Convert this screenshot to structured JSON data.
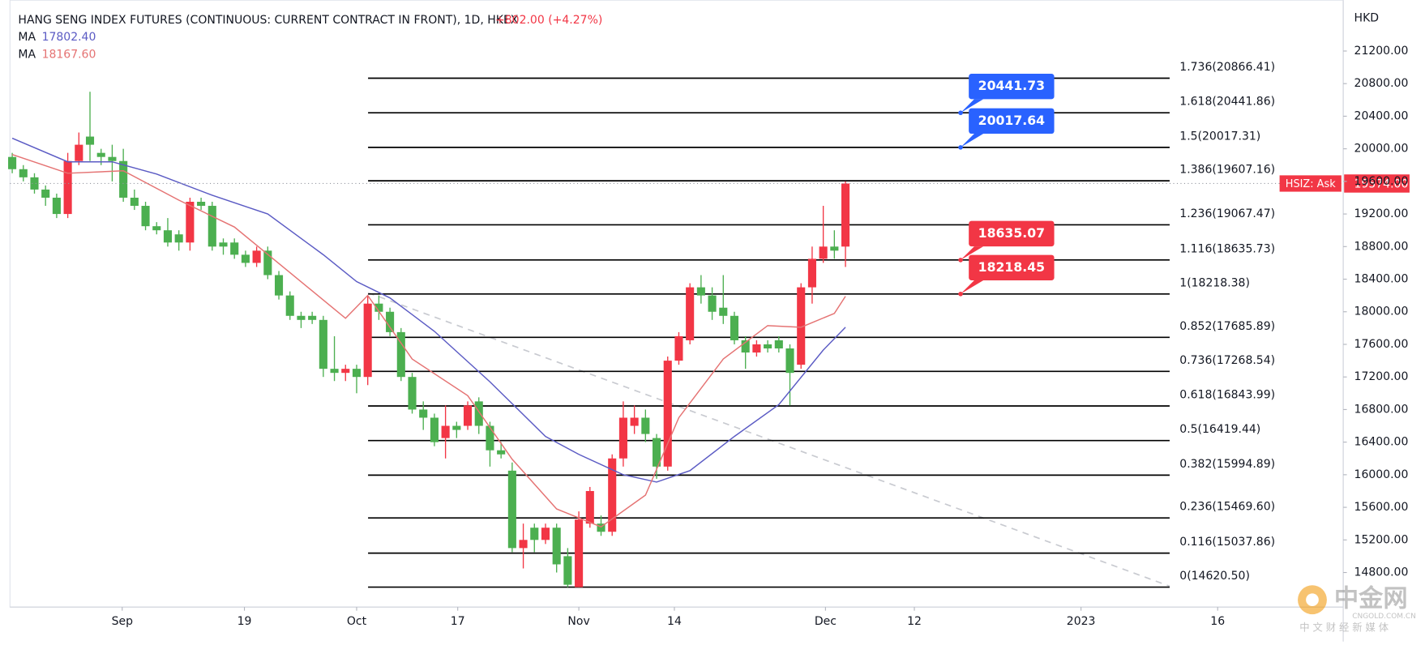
{
  "chart_data": {
    "type": "candlestick",
    "title": "HANG SENG INDEX FUTURES (CONTINUOUS: CURRENT CONTRACT IN FRONT), 1D, HKEX",
    "change": "+802.00 (+4.27%)",
    "y_axis_label": "HKD",
    "up_color": "#f23645",
    "down_color": "#4caf50",
    "xlim": [
      -0.2,
      119.8
    ],
    "ylim": [
      14376,
      21824
    ],
    "xticks": [
      {
        "value": 9.9,
        "label": "Sep"
      },
      {
        "value": 20.9,
        "label": "19"
      },
      {
        "value": 31.0,
        "label": "Oct"
      },
      {
        "value": 40.1,
        "label": "17"
      },
      {
        "value": 51.0,
        "label": "Nov"
      },
      {
        "value": 59.6,
        "label": "14"
      },
      {
        "value": 73.2,
        "label": "Dec"
      },
      {
        "value": 81.2,
        "label": "12"
      },
      {
        "value": 96.2,
        "label": "2023"
      },
      {
        "value": 108.5,
        "label": "16"
      }
    ],
    "yticks": [
      {
        "value": 21200,
        "label": "21200.00"
      },
      {
        "value": 20800,
        "label": "20800.00"
      },
      {
        "value": 20400,
        "label": "20400.00"
      },
      {
        "value": 20000,
        "label": "20000.00"
      },
      {
        "value": 19600,
        "label": "19600.00"
      },
      {
        "value": 19200,
        "label": "19200.00"
      },
      {
        "value": 18800,
        "label": "18800.00"
      },
      {
        "value": 18400,
        "label": "18400.00"
      },
      {
        "value": 18000,
        "label": "18000.00"
      },
      {
        "value": 17600,
        "label": "17600.00"
      },
      {
        "value": 17200,
        "label": "17200.00"
      },
      {
        "value": 16800,
        "label": "16800.00"
      },
      {
        "value": 16400,
        "label": "16400.00"
      },
      {
        "value": 16000,
        "label": "16000.00"
      },
      {
        "value": 15600,
        "label": "15600.00"
      },
      {
        "value": 15200,
        "label": "15200.00"
      },
      {
        "value": 14800,
        "label": "14800.00"
      }
    ],
    "candles": [
      [
        19900,
        19950,
        19700,
        19750
      ],
      [
        19750,
        19800,
        19600,
        19650
      ],
      [
        19650,
        19700,
        19450,
        19500
      ],
      [
        19500,
        19550,
        19300,
        19400
      ],
      [
        19400,
        19450,
        19150,
        19200
      ],
      [
        19200,
        19950,
        19150,
        19850
      ],
      [
        19850,
        20200,
        19800,
        20050
      ],
      [
        20150,
        20700,
        19850,
        20050
      ],
      [
        19950,
        20000,
        19800,
        19900
      ],
      [
        19900,
        20050,
        19600,
        19850
      ],
      [
        19850,
        20000,
        19350,
        19400
      ],
      [
        19400,
        19500,
        19250,
        19300
      ],
      [
        19300,
        19350,
        19000,
        19050
      ],
      [
        19050,
        19100,
        18950,
        19000
      ],
      [
        19000,
        19150,
        18800,
        18850
      ],
      [
        18950,
        19000,
        18750,
        18850
      ],
      [
        18850,
        19400,
        18750,
        19350
      ],
      [
        19350,
        19400,
        19250,
        19300
      ],
      [
        19300,
        19350,
        18750,
        18800
      ],
      [
        18850,
        18900,
        18700,
        18800
      ],
      [
        18850,
        18900,
        18650,
        18700
      ],
      [
        18700,
        18750,
        18550,
        18600
      ],
      [
        18600,
        18800,
        18550,
        18750
      ],
      [
        18750,
        18800,
        18400,
        18450
      ],
      [
        18450,
        18500,
        18150,
        18200
      ],
      [
        18200,
        18250,
        17900,
        17950
      ],
      [
        17950,
        18000,
        17800,
        17900
      ],
      [
        17950,
        18000,
        17850,
        17900
      ],
      [
        17900,
        17950,
        17200,
        17300
      ],
      [
        17300,
        17700,
        17150,
        17250
      ],
      [
        17250,
        17350,
        17150,
        17300
      ],
      [
        17300,
        17350,
        17000,
        17200
      ],
      [
        17200,
        18200,
        17100,
        18100
      ],
      [
        18100,
        18200,
        17900,
        18000
      ],
      [
        18000,
        18050,
        17700,
        17750
      ],
      [
        17750,
        17800,
        17150,
        17200
      ],
      [
        17200,
        17250,
        16750,
        16800
      ],
      [
        16800,
        16900,
        16550,
        16700
      ],
      [
        16700,
        16750,
        16350,
        16400
      ],
      [
        16450,
        16850,
        16200,
        16600
      ],
      [
        16600,
        16650,
        16450,
        16550
      ],
      [
        16600,
        16900,
        16550,
        16850
      ],
      [
        16900,
        16950,
        16500,
        16600
      ],
      [
        16600,
        16650,
        16100,
        16300
      ],
      [
        16300,
        16400,
        16200,
        16250
      ],
      [
        16050,
        16150,
        15050,
        15100
      ],
      [
        15100,
        15400,
        14850,
        15200
      ],
      [
        15350,
        15400,
        15050,
        15200
      ],
      [
        15200,
        15400,
        15150,
        15350
      ],
      [
        15350,
        15400,
        14800,
        14900
      ],
      [
        15000,
        15100,
        14620,
        14650
      ],
      [
        14620,
        15550,
        14620,
        15450
      ],
      [
        15400,
        15850,
        15350,
        15800
      ],
      [
        15400,
        15500,
        15250,
        15300
      ],
      [
        15300,
        16250,
        15250,
        16200
      ],
      [
        16200,
        16900,
        16100,
        16700
      ],
      [
        16600,
        16850,
        16500,
        16700
      ],
      [
        16700,
        16800,
        16400,
        16500
      ],
      [
        16450,
        16500,
        15950,
        16100
      ],
      [
        16100,
        17450,
        16050,
        17400
      ],
      [
        17400,
        17750,
        17350,
        17700
      ],
      [
        17650,
        18350,
        17600,
        18300
      ],
      [
        18300,
        18450,
        18100,
        18200
      ],
      [
        18200,
        18300,
        17900,
        18000
      ],
      [
        18050,
        18450,
        17850,
        17950
      ],
      [
        17950,
        18000,
        17600,
        17650
      ],
      [
        17650,
        17700,
        17300,
        17500
      ],
      [
        17500,
        17650,
        17450,
        17600
      ],
      [
        17600,
        17650,
        17500,
        17550
      ],
      [
        17650,
        17700,
        17500,
        17550
      ],
      [
        17550,
        17600,
        16850,
        17250
      ],
      [
        17350,
        18350,
        17300,
        18300
      ],
      [
        18300,
        18800,
        18100,
        18650
      ],
      [
        18650,
        19300,
        18600,
        18800
      ],
      [
        18800,
        19000,
        18650,
        18750
      ],
      [
        18800,
        19600,
        18550,
        19574
      ]
    ],
    "series": [
      {
        "name": "MA",
        "legend_value": "17802.40",
        "color": "#5b5bc4",
        "x": [
          0,
          5,
          9,
          13,
          18,
          23,
          28,
          31,
          34,
          38,
          43,
          48,
          51,
          55,
          58,
          61,
          65,
          69,
          73,
          75
        ],
        "values": [
          20130,
          19840,
          19840,
          19690,
          19430,
          19200,
          18700,
          18370,
          18170,
          17760,
          17140,
          16470,
          16250,
          16000,
          15910,
          16050,
          16470,
          16860,
          17530,
          17810
        ]
      },
      {
        "name": "MA",
        "legend_value": "18167.60",
        "color": "#e57373",
        "x": [
          0,
          5,
          10,
          15,
          20,
          25,
          30,
          32,
          36,
          41,
          45,
          49,
          53,
          57,
          60,
          64,
          68,
          71,
          74,
          75
        ],
        "values": [
          19930,
          19700,
          19730,
          19370,
          19040,
          18480,
          17920,
          18200,
          17420,
          16970,
          16190,
          15580,
          15360,
          15750,
          16700,
          17420,
          17830,
          17810,
          17980,
          18190
        ]
      }
    ],
    "fib_levels": [
      {
        "price": 20866.41,
        "label": "1.736(20866.41)"
      },
      {
        "price": 20441.86,
        "label": "1.618(20441.86)"
      },
      {
        "price": 20017.31,
        "label": "1.5(20017.31)"
      },
      {
        "price": 19607.16,
        "label": "1.386(19607.16)"
      },
      {
        "price": 19067.47,
        "label": "1.236(19067.47)"
      },
      {
        "price": 18635.73,
        "label": "1.116(18635.73)"
      },
      {
        "price": 18218.38,
        "label": "1(18218.38)"
      },
      {
        "price": 17685.89,
        "label": "0.852(17685.89)"
      },
      {
        "price": 17268.54,
        "label": "0.736(17268.54)"
      },
      {
        "price": 16843.99,
        "label": "0.618(16843.99)"
      },
      {
        "price": 16419.44,
        "label": "0.5(16419.44)"
      },
      {
        "price": 15994.89,
        "label": "0.382(15994.89)"
      },
      {
        "price": 15469.6,
        "label": "0.236(15469.60)"
      },
      {
        "price": 15037.86,
        "label": "0.116(15037.86)"
      },
      {
        "price": 14620.5,
        "label": "0(14620.50)"
      }
    ],
    "callouts": [
      {
        "value": 20441.73,
        "color": "#2962ff"
      },
      {
        "value": 20017.64,
        "color": "#2962ff"
      },
      {
        "value": 18635.07,
        "color": "#f23645"
      },
      {
        "value": 18218.45,
        "color": "#f23645"
      }
    ],
    "current_price": {
      "value": 19574,
      "label": "19574.00"
    },
    "price_tag": "HSIZ: Ask",
    "watermark": {
      "logo": "中金网",
      "site": "CNGOLD.COM.CN",
      "slogan": "中 文 财 经 新 媒 体"
    }
  }
}
